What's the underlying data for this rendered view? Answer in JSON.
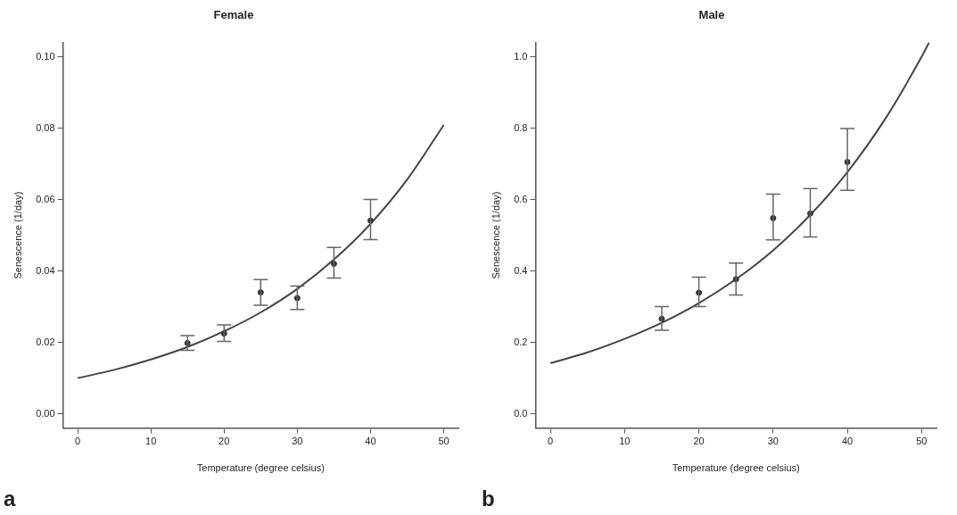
{
  "chart_data": [
    {
      "type": "scatter",
      "title": "Female",
      "xlabel": "Temperature (degree celsius)",
      "ylabel": "Senescence (1/day)",
      "xlim": [
        -2,
        52
      ],
      "ylim": [
        -0.004,
        0.104
      ],
      "xticks": [
        0,
        10,
        20,
        30,
        40,
        50
      ],
      "yticks": [
        {
          "value": 0,
          "label": "0.00"
        },
        {
          "value": 0.02,
          "label": "0.02"
        },
        {
          "value": 0.04,
          "label": "0.04"
        },
        {
          "value": 0.06,
          "label": "0.06"
        },
        {
          "value": 0.08,
          "label": "0.08"
        },
        {
          "value": 0.1,
          "label": "0.10"
        }
      ],
      "grid": false,
      "annotations": [
        "a"
      ],
      "series": [
        {
          "type": "scatter",
          "color": "#333333",
          "marker": "circle",
          "x": [
            15,
            20,
            25,
            30,
            35,
            40
          ],
          "values": [
            0.0198,
            0.0225,
            0.034,
            0.0324,
            0.042,
            0.0541
          ],
          "errors": [
            [
              0.0178,
              0.0219
            ],
            [
              0.0203,
              0.0249
            ],
            [
              0.0304,
              0.0376
            ],
            [
              0.0292,
              0.0358
            ],
            [
              0.038,
              0.0466
            ],
            [
              0.0488,
              0.06
            ]
          ]
        },
        {
          "type": "line",
          "color": "#444444",
          "marker": "none",
          "x": [
            0,
            5,
            10,
            15,
            20,
            25,
            30,
            35,
            40,
            45,
            50
          ],
          "values": [
            0.01,
            0.0123,
            0.0152,
            0.0187,
            0.0231,
            0.0284,
            0.035,
            0.0432,
            0.0532,
            0.0656,
            0.0809
          ]
        }
      ]
    },
    {
      "type": "scatter",
      "title": "Male",
      "xlabel": "Temperature (degree celsius)",
      "ylabel": "Senescence (1/day)",
      "xlim": [
        -2,
        52
      ],
      "ylim": [
        -0.04,
        1.04
      ],
      "xticks": [
        0,
        10,
        20,
        30,
        40,
        50
      ],
      "yticks": [
        {
          "value": 0,
          "label": "0.0"
        },
        {
          "value": 0.2,
          "label": "0.2"
        },
        {
          "value": 0.4,
          "label": "0.4"
        },
        {
          "value": 0.6,
          "label": "0.6"
        },
        {
          "value": 0.8,
          "label": "0.8"
        },
        {
          "value": 1,
          "label": "1.0"
        }
      ],
      "grid": false,
      "annotations": [
        "b"
      ],
      "series": [
        {
          "type": "scatter",
          "color": "#333333",
          "marker": "circle",
          "x": [
            15,
            20,
            25,
            30,
            35,
            40
          ],
          "values": [
            0.266,
            0.339,
            0.377,
            0.548,
            0.561,
            0.705
          ],
          "errors": [
            [
              0.234,
              0.3
            ],
            [
              0.3,
              0.383
            ],
            [
              0.333,
              0.422
            ],
            [
              0.487,
              0.615
            ],
            [
              0.495,
              0.631
            ],
            [
              0.626,
              0.799
            ]
          ]
        },
        {
          "type": "line",
          "color": "#444444",
          "marker": "none",
          "x": [
            0,
            5,
            10,
            15,
            20,
            25,
            30,
            35,
            40,
            45,
            50,
            51
          ],
          "values": [
            0.142,
            0.172,
            0.21,
            0.255,
            0.31,
            0.377,
            0.458,
            0.557,
            0.677,
            0.823,
            1.0,
            1.04
          ]
        }
      ]
    }
  ]
}
